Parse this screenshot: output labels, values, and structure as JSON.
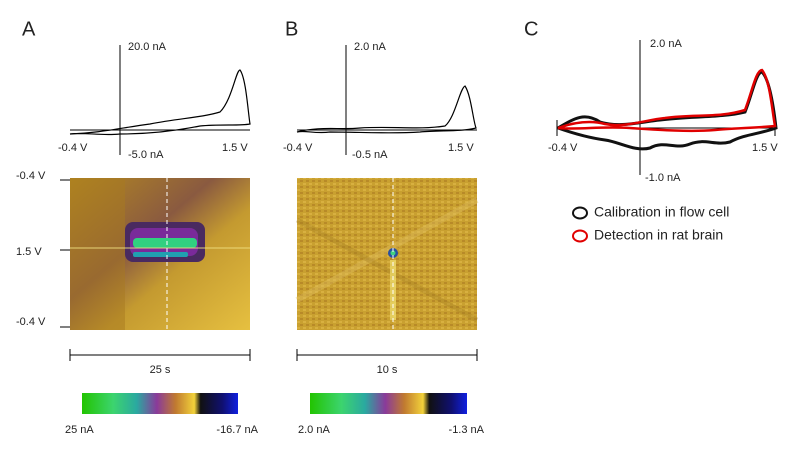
{
  "panels": [
    {
      "label": "A",
      "cv": {
        "y_top": "20.0 nA",
        "y_bottom": "-5.0 nA",
        "x_left": "-0.4 V",
        "x_right": "1.5 V"
      },
      "color_plot": {
        "y_labels": [
          "-0.4 V",
          "1.5 V",
          "-0.4 V"
        ],
        "time": "25 s"
      },
      "scale": {
        "max": "25 nA",
        "min": "-16.7 nA"
      }
    },
    {
      "label": "B",
      "cv": {
        "y_top": "2.0 nA",
        "y_bottom": "-0.5 nA",
        "x_left": "-0.4 V",
        "x_right": "1.5 V"
      },
      "color_plot": {
        "time": "10 s"
      },
      "scale": {
        "max": "2.0 nA",
        "min": "-1.3 nA"
      }
    },
    {
      "label": "C",
      "cv": {
        "y_top": "2.0 nA",
        "y_bottom": "-1.0 nA",
        "x_left": "-0.4 V",
        "x_right": "1.5 V"
      },
      "legend": [
        "Calibration in flow cell",
        "Detection in rat brain"
      ]
    }
  ]
}
